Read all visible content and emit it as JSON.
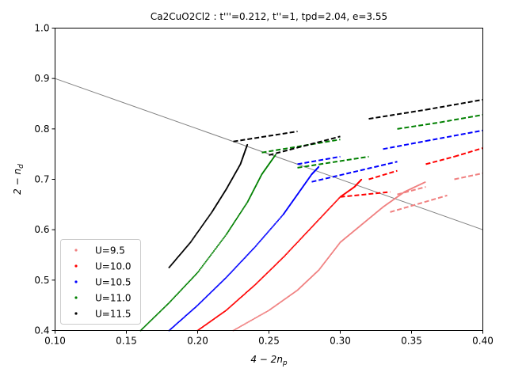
{
  "chart_data": {
    "type": "scatter",
    "title": "Ca2CuO2Cl2 : t'''=0.212, t''=1, tpd=2.04, e=3.55",
    "xlabel": "4 − 2n",
    "xlabel_sub": "p",
    "ylabel": "2 − n",
    "ylabel_sub": "d",
    "xlim": [
      0.1,
      0.4
    ],
    "ylim": [
      0.4,
      1.0
    ],
    "xticks": [
      "0.10",
      "0.15",
      "0.20",
      "0.25",
      "0.30",
      "0.35",
      "0.40"
    ],
    "yticks": [
      "0.4",
      "0.5",
      "0.6",
      "0.7",
      "0.8",
      "0.9",
      "1.0"
    ],
    "grid": false,
    "legend_position": "lower-left",
    "reference_line": {
      "x": [
        0.1,
        0.4
      ],
      "y": [
        0.9,
        0.6
      ],
      "color": "#808080"
    },
    "series": [
      {
        "name": "U=9.5",
        "color": "#f08080",
        "points": [
          [
            0.225,
            0.4
          ],
          [
            0.25,
            0.44
          ],
          [
            0.27,
            0.48
          ],
          [
            0.285,
            0.52
          ],
          [
            0.3,
            0.575
          ],
          [
            0.315,
            0.61
          ],
          [
            0.33,
            0.645
          ],
          [
            0.345,
            0.675
          ],
          [
            0.36,
            0.695
          ]
        ],
        "dashed": [
          [
            0.335,
            0.635
          ],
          [
            0.375,
            0.668
          ],
          [
            0.34,
            0.67
          ],
          [
            0.36,
            0.685
          ],
          [
            0.38,
            0.7
          ],
          [
            0.4,
            0.712
          ]
        ]
      },
      {
        "name": "U=10.0",
        "color": "#ff0000",
        "points": [
          [
            0.2,
            0.4
          ],
          [
            0.22,
            0.44
          ],
          [
            0.24,
            0.49
          ],
          [
            0.26,
            0.545
          ],
          [
            0.28,
            0.605
          ],
          [
            0.3,
            0.665
          ],
          [
            0.31,
            0.685
          ],
          [
            0.315,
            0.7
          ]
        ],
        "dashed": [
          [
            0.3,
            0.665
          ],
          [
            0.335,
            0.675
          ],
          [
            0.32,
            0.7
          ],
          [
            0.34,
            0.717
          ],
          [
            0.36,
            0.73
          ],
          [
            0.38,
            0.745
          ],
          [
            0.4,
            0.762
          ]
        ]
      },
      {
        "name": "U=10.5",
        "color": "#0000ff",
        "points": [
          [
            0.18,
            0.4
          ],
          [
            0.2,
            0.45
          ],
          [
            0.22,
            0.505
          ],
          [
            0.24,
            0.565
          ],
          [
            0.26,
            0.63
          ],
          [
            0.27,
            0.67
          ],
          [
            0.28,
            0.71
          ],
          [
            0.285,
            0.725
          ]
        ],
        "dashed": [
          [
            0.28,
            0.695
          ],
          [
            0.34,
            0.735
          ],
          [
            0.27,
            0.73
          ],
          [
            0.3,
            0.745
          ],
          [
            0.33,
            0.76
          ],
          [
            0.36,
            0.776
          ],
          [
            0.4,
            0.797
          ]
        ]
      },
      {
        "name": "U=11.0",
        "color": "#008000",
        "points": [
          [
            0.16,
            0.4
          ],
          [
            0.18,
            0.455
          ],
          [
            0.2,
            0.515
          ],
          [
            0.22,
            0.59
          ],
          [
            0.235,
            0.655
          ],
          [
            0.245,
            0.71
          ],
          [
            0.255,
            0.75
          ]
        ],
        "dashed": [
          [
            0.27,
            0.723
          ],
          [
            0.32,
            0.745
          ],
          [
            0.245,
            0.753
          ],
          [
            0.3,
            0.779
          ],
          [
            0.34,
            0.8
          ],
          [
            0.37,
            0.813
          ],
          [
            0.4,
            0.828
          ]
        ]
      },
      {
        "name": "U=11.5",
        "color": "#000000",
        "points": [
          [
            0.18,
            0.525
          ],
          [
            0.195,
            0.575
          ],
          [
            0.21,
            0.635
          ],
          [
            0.22,
            0.68
          ],
          [
            0.23,
            0.73
          ],
          [
            0.235,
            0.77
          ]
        ],
        "dashed": [
          [
            0.25,
            0.748
          ],
          [
            0.3,
            0.785
          ],
          [
            0.225,
            0.775
          ],
          [
            0.27,
            0.795
          ],
          [
            0.32,
            0.82
          ],
          [
            0.36,
            0.838
          ],
          [
            0.4,
            0.858
          ]
        ]
      }
    ]
  }
}
